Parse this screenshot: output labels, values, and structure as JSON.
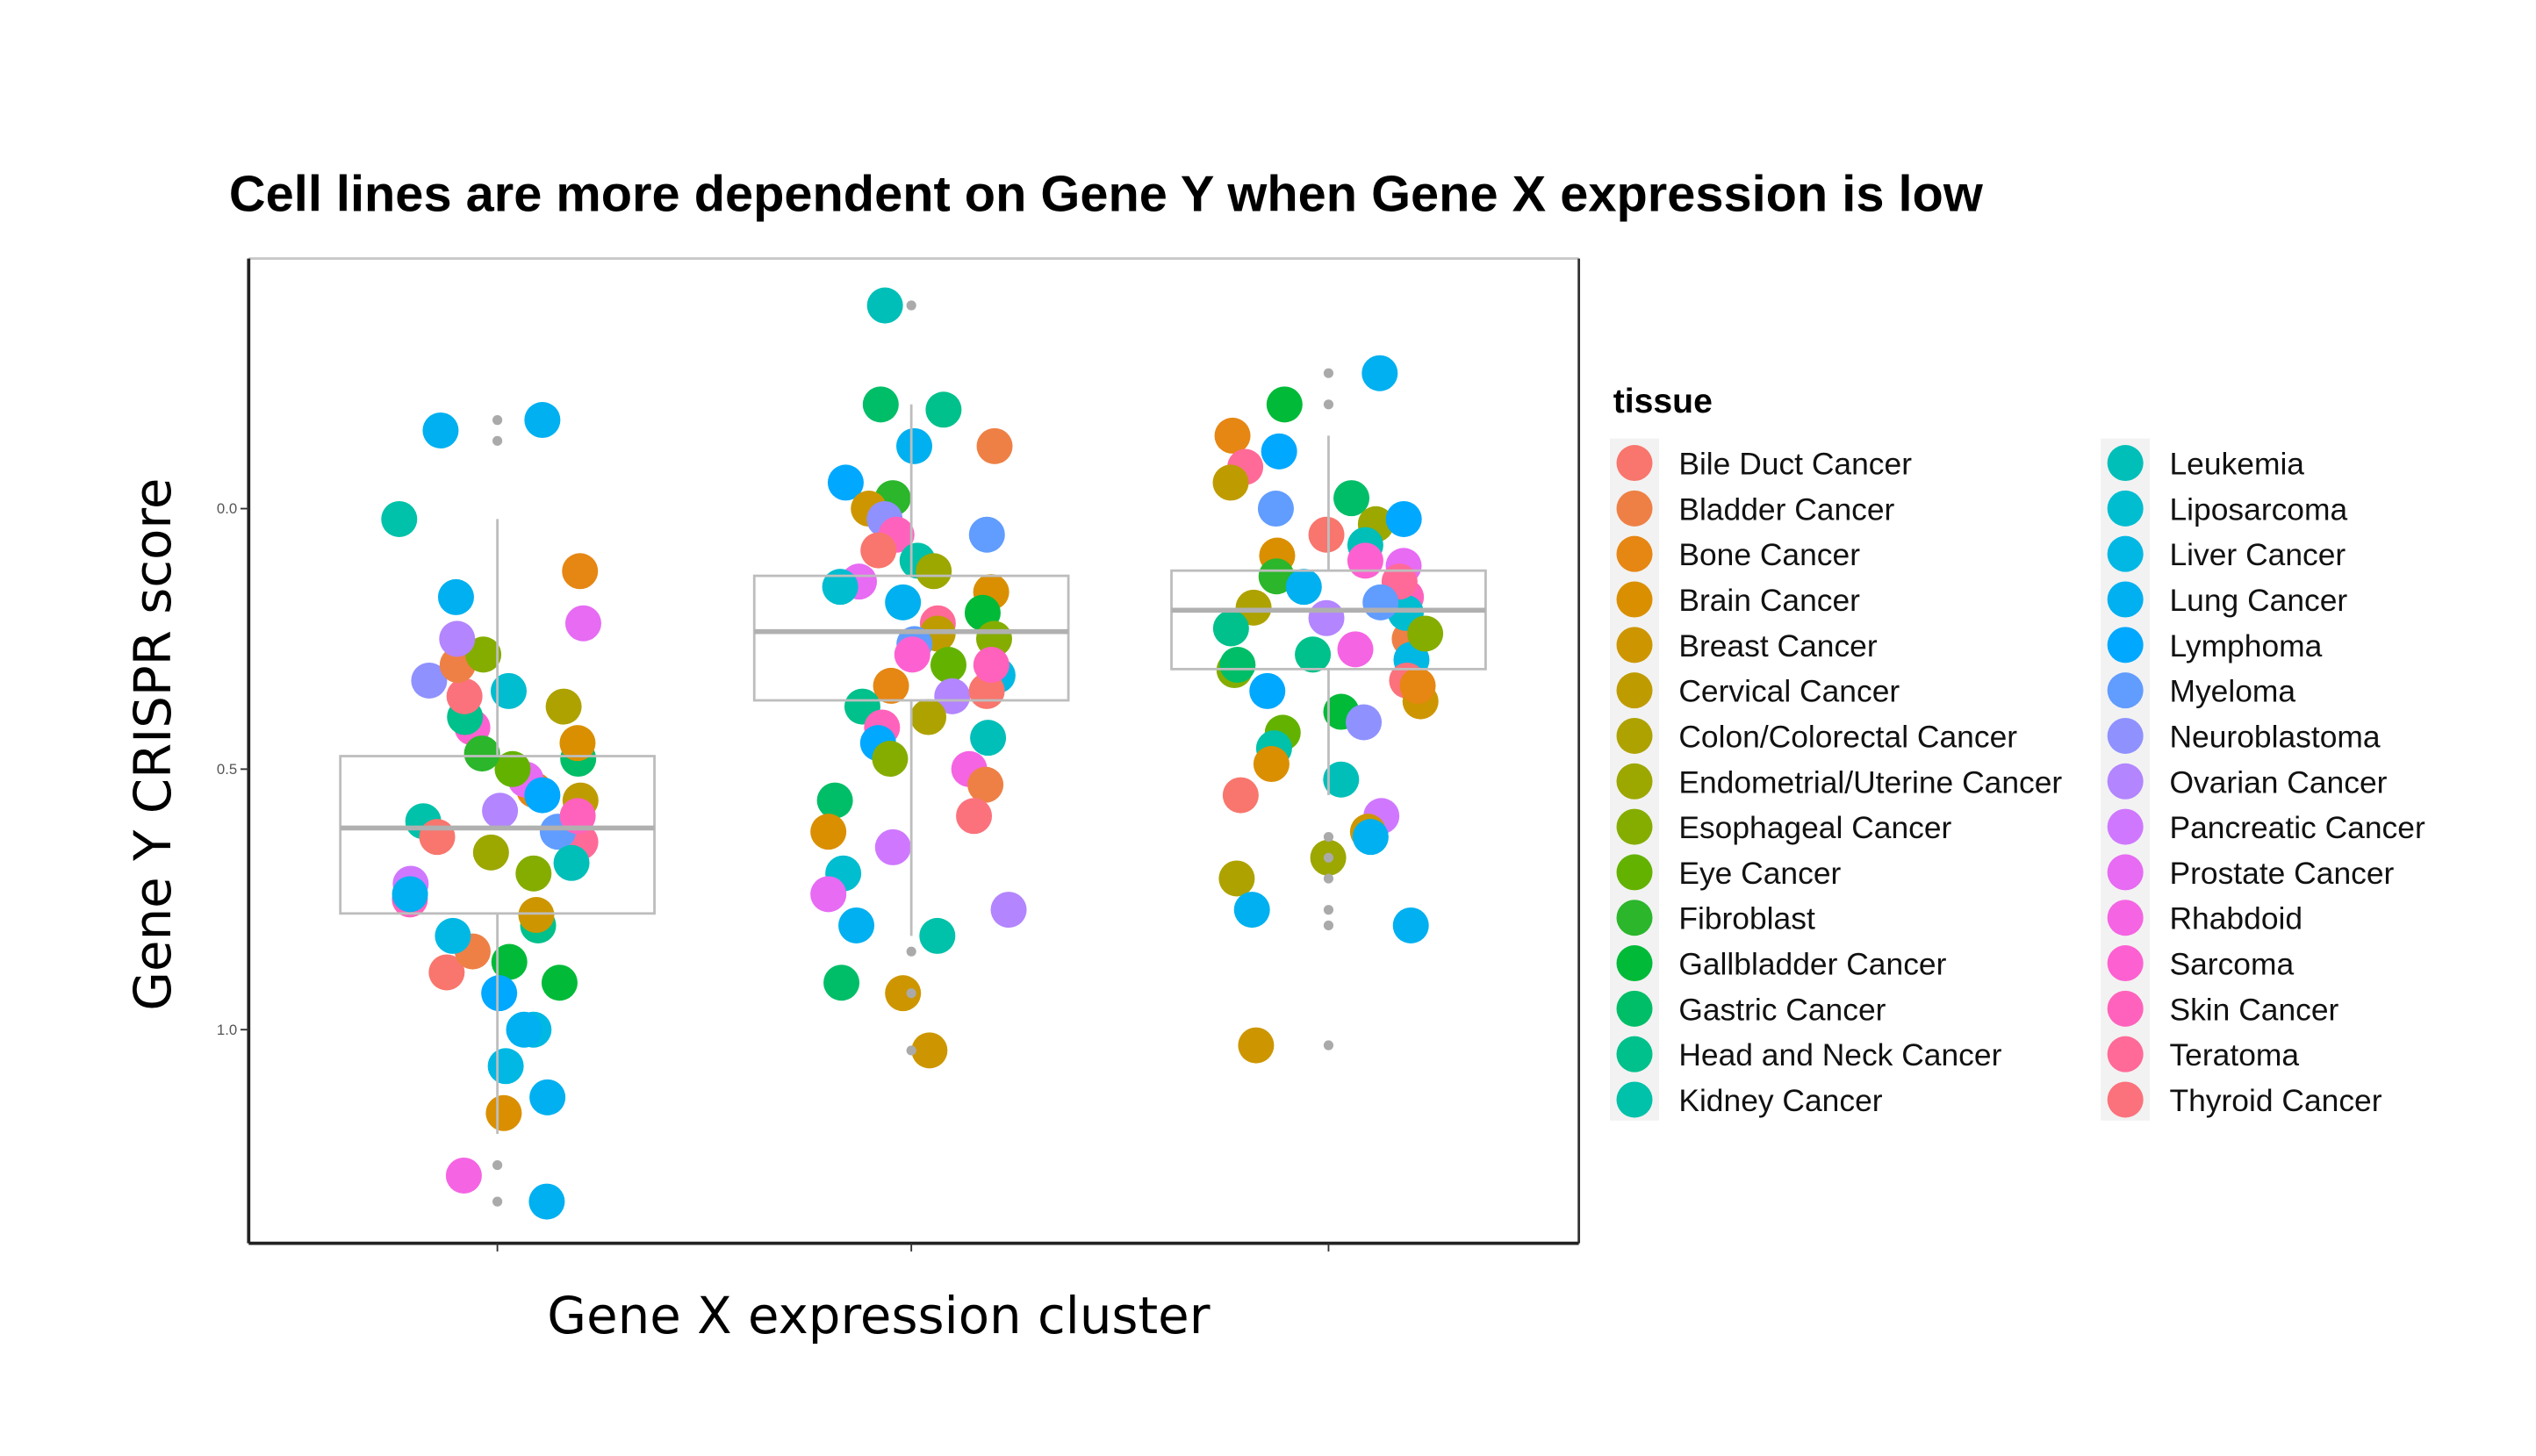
{
  "chart_data": {
    "type": "scatter",
    "subtype": "jittered points with boxplots",
    "title": "Cell lines are more dependent on Gene Y when Gene X expression is low",
    "xlabel": "Gene X expression cluster",
    "ylabel": "Gene Y CRISPR score",
    "y_axis_reversed": true,
    "ylim": [
      -0.48,
      1.41
    ],
    "yticks": [
      "0.0",
      "0.5",
      "1.0"
    ],
    "ytick_values": [
      0.0,
      0.5,
      1.0
    ],
    "grid": false,
    "legend": {
      "title": "tissue",
      "placement": "right",
      "entries": [
        {
          "label": "Bile Duct Cancer",
          "color": "#F8766D"
        },
        {
          "label": "Bladder Cancer",
          "color": "#EE8046"
        },
        {
          "label": "Bone Cancer",
          "color": "#E68613"
        },
        {
          "label": "Brain Cancer",
          "color": "#DA8F00"
        },
        {
          "label": "Breast Cancer",
          "color": "#CD9600"
        },
        {
          "label": "Cervical Cancer",
          "color": "#BE9C00"
        },
        {
          "label": "Colon/Colorectal Cancer",
          "color": "#AEA200"
        },
        {
          "label": "Endometrial/Uterine Cancer",
          "color": "#9CA700"
        },
        {
          "label": "Esophageal Cancer",
          "color": "#85AD00"
        },
        {
          "label": "Eye Cancer",
          "color": "#64B200"
        },
        {
          "label": "Fibroblast",
          "color": "#2BB62B"
        },
        {
          "label": "Gallbladder Cancer",
          "color": "#00BA38"
        },
        {
          "label": "Gastric Cancer",
          "color": "#00BE67"
        },
        {
          "label": "Head and Neck Cancer",
          "color": "#00C08B"
        },
        {
          "label": "Kidney Cancer",
          "color": "#00C1A9"
        },
        {
          "label": "Leukemia",
          "color": "#00BFB8"
        },
        {
          "label": "Liposarcoma",
          "color": "#00BDD0"
        },
        {
          "label": "Liver Cancer",
          "color": "#00B8E3"
        },
        {
          "label": "Lung Cancer",
          "color": "#00B0F0"
        },
        {
          "label": "Lymphoma",
          "color": "#00A8FF"
        },
        {
          "label": "Myeloma",
          "color": "#619CFF"
        },
        {
          "label": "Neuroblastoma",
          "color": "#8F91FF"
        },
        {
          "label": "Ovarian Cancer",
          "color": "#B385FF"
        },
        {
          "label": "Pancreatic Cancer",
          "color": "#CF78FF"
        },
        {
          "label": "Prostate Cancer",
          "color": "#E76BF3"
        },
        {
          "label": "Rhabdoid",
          "color": "#F564E3"
        },
        {
          "label": "Sarcoma",
          "color": "#FD61D1"
        },
        {
          "label": "Skin Cancer",
          "color": "#FF62BC"
        },
        {
          "label": "Teratoma",
          "color": "#FF6A98"
        },
        {
          "label": "Thyroid Cancer",
          "color": "#FB727C"
        }
      ]
    },
    "boxes": [
      {
        "cluster": 1,
        "whisker_low": 0.02,
        "q1": 0.475,
        "median": 0.613,
        "q3": 0.777,
        "whisker_high": 1.2,
        "outliers": [
          -0.17,
          -0.13,
          1.26,
          1.33
        ]
      },
      {
        "cluster": 2,
        "whisker_low": -0.2,
        "q1": 0.129,
        "median": 0.236,
        "q3": 0.368,
        "whisker_high": 0.82,
        "outliers": [
          -0.39,
          0.85,
          0.93,
          1.04
        ]
      },
      {
        "cluster": 3,
        "whisker_low": -0.14,
        "q1": 0.119,
        "median": 0.195,
        "q3": 0.308,
        "whisker_high": 0.55,
        "outliers": [
          -0.26,
          -0.2,
          0.63,
          0.67,
          0.71,
          0.77,
          0.8,
          1.03
        ]
      }
    ],
    "points": [
      [
        [
          0.02,
          14
        ],
        [
          0.12,
          2
        ],
        [
          0.17,
          18
        ],
        [
          -0.15,
          18
        ],
        [
          -0.17,
          18
        ],
        [
          1.16,
          3
        ],
        [
          1.28,
          25
        ],
        [
          1.33,
          18
        ],
        [
          1.13,
          18
        ],
        [
          1.07,
          17
        ],
        [
          1.0,
          17
        ],
        [
          1.0,
          18
        ],
        [
          0.91,
          11
        ],
        [
          0.89,
          0
        ],
        [
          0.85,
          1
        ],
        [
          0.8,
          13
        ],
        [
          0.78,
          4
        ],
        [
          0.75,
          27
        ],
        [
          0.7,
          8
        ],
        [
          0.66,
          7
        ],
        [
          0.64,
          28
        ],
        [
          0.62,
          20
        ],
        [
          0.6,
          14
        ],
        [
          0.58,
          22
        ],
        [
          0.56,
          5
        ],
        [
          0.54,
          2
        ],
        [
          0.52,
          24
        ],
        [
          0.5,
          9
        ],
        [
          0.48,
          12
        ],
        [
          0.45,
          3
        ],
        [
          0.42,
          26
        ],
        [
          0.4,
          13
        ],
        [
          0.38,
          6
        ],
        [
          0.36,
          29
        ],
        [
          0.33,
          21
        ],
        [
          0.3,
          1
        ],
        [
          0.28,
          8
        ],
        [
          0.25,
          22
        ],
        [
          0.22,
          24
        ],
        [
          0.35,
          16
        ],
        [
          0.55,
          19
        ],
        [
          0.68,
          15
        ],
        [
          0.72,
          23
        ],
        [
          0.82,
          17
        ],
        [
          0.87,
          11
        ],
        [
          0.93,
          19
        ],
        [
          0.47,
          10
        ],
        [
          0.63,
          0
        ],
        [
          0.59,
          27
        ],
        [
          0.74,
          18
        ]
      ],
      [
        [
          -0.39,
          15
        ],
        [
          -0.2,
          12
        ],
        [
          -0.19,
          13
        ],
        [
          -0.12,
          1
        ],
        [
          -0.12,
          18
        ],
        [
          -0.05,
          19
        ],
        [
          -0.02,
          10
        ],
        [
          0.0,
          4
        ],
        [
          0.02,
          21
        ],
        [
          0.05,
          27
        ],
        [
          0.08,
          0
        ],
        [
          0.1,
          14
        ],
        [
          0.12,
          7
        ],
        [
          0.14,
          24
        ],
        [
          0.16,
          3
        ],
        [
          0.18,
          18
        ],
        [
          0.2,
          11
        ],
        [
          0.22,
          28
        ],
        [
          0.24,
          5
        ],
        [
          0.26,
          20
        ],
        [
          0.28,
          26
        ],
        [
          0.3,
          9
        ],
        [
          0.32,
          17
        ],
        [
          0.34,
          2
        ],
        [
          0.36,
          22
        ],
        [
          0.38,
          13
        ],
        [
          0.4,
          6
        ],
        [
          0.42,
          27
        ],
        [
          0.45,
          19
        ],
        [
          0.48,
          8
        ],
        [
          0.5,
          25
        ],
        [
          0.53,
          1
        ],
        [
          0.56,
          12
        ],
        [
          0.59,
          29
        ],
        [
          0.62,
          3
        ],
        [
          0.65,
          23
        ],
        [
          0.7,
          16
        ],
        [
          0.74,
          24
        ],
        [
          0.77,
          22
        ],
        [
          0.8,
          18
        ],
        [
          0.82,
          14
        ],
        [
          0.91,
          12
        ],
        [
          0.93,
          4
        ],
        [
          1.04,
          4
        ],
        [
          0.15,
          16
        ],
        [
          0.25,
          8
        ],
        [
          0.35,
          0
        ],
        [
          0.44,
          15
        ],
        [
          0.05,
          20
        ],
        [
          0.3,
          27
        ]
      ],
      [
        [
          -0.26,
          18
        ],
        [
          -0.2,
          11
        ],
        [
          -0.14,
          2
        ],
        [
          -0.11,
          19
        ],
        [
          -0.08,
          28
        ],
        [
          -0.05,
          5
        ],
        [
          -0.02,
          12
        ],
        [
          0.0,
          20
        ],
        [
          0.03,
          7
        ],
        [
          0.05,
          0
        ],
        [
          0.07,
          15
        ],
        [
          0.09,
          3
        ],
        [
          0.11,
          24
        ],
        [
          0.13,
          10
        ],
        [
          0.15,
          18
        ],
        [
          0.17,
          27
        ],
        [
          0.19,
          6
        ],
        [
          0.21,
          22
        ],
        [
          0.23,
          13
        ],
        [
          0.25,
          1
        ],
        [
          0.27,
          25
        ],
        [
          0.29,
          17
        ],
        [
          0.31,
          8
        ],
        [
          0.33,
          29
        ],
        [
          0.35,
          19
        ],
        [
          0.37,
          4
        ],
        [
          0.39,
          11
        ],
        [
          0.41,
          21
        ],
        [
          0.43,
          9
        ],
        [
          0.46,
          14
        ],
        [
          0.49,
          3
        ],
        [
          0.52,
          15
        ],
        [
          0.55,
          0
        ],
        [
          0.59,
          23
        ],
        [
          0.62,
          4
        ],
        [
          0.63,
          18
        ],
        [
          0.67,
          7
        ],
        [
          0.71,
          6
        ],
        [
          0.77,
          18
        ],
        [
          0.8,
          18
        ],
        [
          1.03,
          4
        ],
        [
          0.1,
          26
        ],
        [
          0.2,
          16
        ],
        [
          0.3,
          12
        ],
        [
          0.02,
          19
        ],
        [
          0.14,
          28
        ],
        [
          0.24,
          8
        ],
        [
          0.34,
          2
        ],
        [
          0.18,
          20
        ],
        [
          0.28,
          13
        ]
      ]
    ]
  }
}
